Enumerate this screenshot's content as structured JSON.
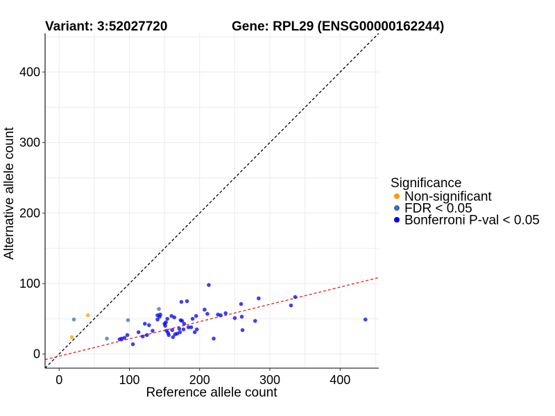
{
  "chart_data": {
    "type": "scatter",
    "title_left": "Variant: 3:52027720",
    "title_right": "Gene: RPL29 (ENSG00000162244)",
    "xlabel": "Reference allele count",
    "ylabel": "Alternative allele count",
    "xlim": [
      -20,
      455
    ],
    "ylim": [
      -20,
      455
    ],
    "x_ticks": [
      0,
      100,
      200,
      300,
      400
    ],
    "y_ticks": [
      0,
      100,
      200,
      300,
      400
    ],
    "grid": true,
    "identity_line": {
      "slope": 1,
      "intercept": 0,
      "color": "#000000",
      "style": "dashed"
    },
    "fit_line": {
      "slope": 0.245,
      "intercept": -3,
      "color": "#e41a1c",
      "style": "dashed"
    },
    "legend": {
      "title": "Significance",
      "position": "right",
      "entries": [
        {
          "label": "Non-significant",
          "color": "#ff9900"
        },
        {
          "label": "FDR < 0.05",
          "color": "#3d6eb0"
        },
        {
          "label": "Bonferroni P-val < 0.05",
          "color": "#0000ee"
        }
      ]
    },
    "series": [
      {
        "name": "Non-significant",
        "color": "#ff9900",
        "points": [
          [
            41,
            55
          ],
          [
            18,
            24
          ]
        ]
      },
      {
        "name": "FDR < 0.05",
        "color": "#3d6eb0",
        "points": [
          [
            21,
            49
          ],
          [
            68,
            22
          ],
          [
            98,
            48
          ],
          [
            142,
            64
          ]
        ]
      },
      {
        "name": "Bonferroni P-val < 0.05",
        "color": "#0000ee",
        "points": [
          [
            86,
            21
          ],
          [
            89,
            22
          ],
          [
            93,
            23
          ],
          [
            97,
            27
          ],
          [
            105,
            14
          ],
          [
            113,
            31
          ],
          [
            119,
            25
          ],
          [
            122,
            43
          ],
          [
            125,
            27
          ],
          [
            128,
            41
          ],
          [
            133,
            33
          ],
          [
            140,
            49
          ],
          [
            140,
            55
          ],
          [
            143,
            53
          ],
          [
            144,
            56
          ],
          [
            150,
            43
          ],
          [
            151,
            40
          ],
          [
            152,
            45
          ],
          [
            153,
            33
          ],
          [
            154,
            50
          ],
          [
            155,
            30
          ],
          [
            156,
            27
          ],
          [
            160,
            54
          ],
          [
            161,
            34
          ],
          [
            162,
            24
          ],
          [
            164,
            52
          ],
          [
            165,
            28
          ],
          [
            168,
            29
          ],
          [
            171,
            36
          ],
          [
            172,
            31
          ],
          [
            173,
            48
          ],
          [
            174,
            74
          ],
          [
            175,
            47
          ],
          [
            177,
            35
          ],
          [
            178,
            43
          ],
          [
            182,
            75
          ],
          [
            184,
            38
          ],
          [
            188,
            38
          ],
          [
            190,
            50
          ],
          [
            193,
            31
          ],
          [
            195,
            54
          ],
          [
            196,
            35
          ],
          [
            207,
            63
          ],
          [
            211,
            57
          ],
          [
            213,
            98
          ],
          [
            220,
            22
          ],
          [
            226,
            56
          ],
          [
            230,
            55
          ],
          [
            237,
            58
          ],
          [
            250,
            51
          ],
          [
            259,
            71
          ],
          [
            260,
            53
          ],
          [
            261,
            34
          ],
          [
            279,
            47
          ],
          [
            284,
            79
          ],
          [
            330,
            69
          ],
          [
            336,
            81
          ],
          [
            436,
            49
          ]
        ]
      }
    ]
  }
}
